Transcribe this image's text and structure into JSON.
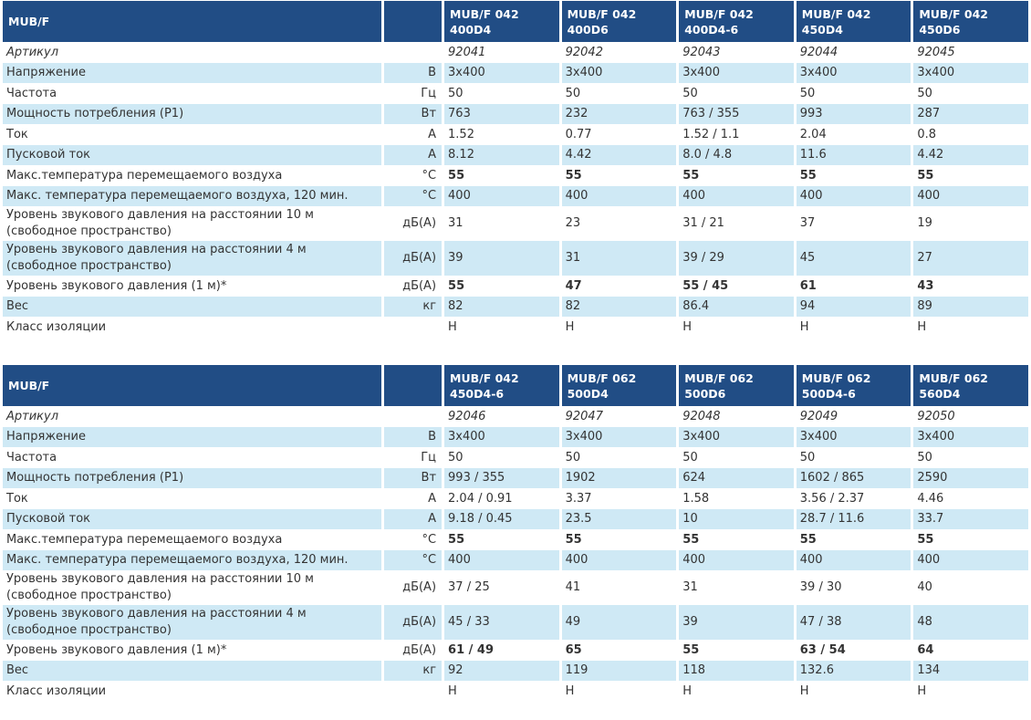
{
  "tables": [
    {
      "header": {
        "title": "MUB/F",
        "models": [
          "MUB/F 042 400D4",
          "MUB/F 042 400D6",
          "MUB/F 042 400D4-6",
          "MUB/F 042 450D4",
          "MUB/F 042 450D6"
        ]
      },
      "rows": [
        {
          "label": "Артикул",
          "unit": "",
          "values": [
            "92041",
            "92042",
            "92043",
            "92044",
            "92045"
          ]
        },
        {
          "label": "Напряжение",
          "unit": "В",
          "values": [
            "3x400",
            "3x400",
            "3x400",
            "3x400",
            "3x400"
          ]
        },
        {
          "label": "Частота",
          "unit": "Гц",
          "values": [
            "50",
            "50",
            "50",
            "50",
            "50"
          ]
        },
        {
          "label": "Мощность потребления (P1)",
          "unit": "Вт",
          "values": [
            "763",
            "232",
            "763 / 355",
            "993",
            "287"
          ]
        },
        {
          "label": "Ток",
          "unit": "A",
          "values": [
            "1.52",
            "0.77",
            "1.52 / 1.1",
            "2.04",
            "0.8"
          ]
        },
        {
          "label": "Пусковой ток",
          "unit": "A",
          "values": [
            "8.12",
            "4.42",
            "8.0 / 4.8",
            "11.6",
            "4.42"
          ]
        },
        {
          "label": "Макс.температура перемещаемого воздуха",
          "unit": "°C",
          "values": [
            "55",
            "55",
            "55",
            "55",
            "55"
          ]
        },
        {
          "label": "Макс. температура перемещаемого воздуха, 120 мин.",
          "unit": "°C",
          "values": [
            "400",
            "400",
            "400",
            "400",
            "400"
          ]
        },
        {
          "label": "Уровень звукового давления на расстоянии 10 м (свободное пространство)",
          "unit": "дБ(A)",
          "values": [
            "31",
            "23",
            "31 / 21",
            "37",
            "19"
          ]
        },
        {
          "label": "Уровень звукового давления на расстоянии 4 м (свободное пространство)",
          "unit": "дБ(A)",
          "values": [
            "39",
            "31",
            "39 / 29",
            "45",
            "27"
          ]
        },
        {
          "label": "Уровень звукового давления (1 м)*",
          "unit": "дБ(A)",
          "values": [
            "55",
            "47",
            "55 / 45",
            "61",
            "43"
          ]
        },
        {
          "label": "Вес",
          "unit": "кг",
          "values": [
            "82",
            "82",
            "86.4",
            "94",
            "89"
          ]
        },
        {
          "label": "Класс изоляции",
          "unit": "",
          "values": [
            "H",
            "H",
            "H",
            "H",
            "H"
          ]
        }
      ]
    },
    {
      "header": {
        "title": "MUB/F",
        "models": [
          "MUB/F 042 450D4-6",
          "MUB/F 062 500D4",
          "MUB/F 062 500D6",
          "MUB/F 062 500D4-6",
          "MUB/F 062 560D4"
        ]
      },
      "rows": [
        {
          "label": "Артикул",
          "unit": "",
          "values": [
            "92046",
            "92047",
            "92048",
            "92049",
            "92050"
          ]
        },
        {
          "label": "Напряжение",
          "unit": "В",
          "values": [
            "3x400",
            "3x400",
            "3x400",
            "3x400",
            "3x400"
          ]
        },
        {
          "label": "Частота",
          "unit": "Гц",
          "values": [
            "50",
            "50",
            "50",
            "50",
            "50"
          ]
        },
        {
          "label": "Мощность потребления (P1)",
          "unit": "Вт",
          "values": [
            "993 / 355",
            "1902",
            "624",
            "1602 / 865",
            "2590"
          ]
        },
        {
          "label": "Ток",
          "unit": "A",
          "values": [
            "2.04 / 0.91",
            "3.37",
            "1.58",
            "3.56 / 2.37",
            "4.46"
          ]
        },
        {
          "label": "Пусковой ток",
          "unit": "A",
          "values": [
            "9.18 / 0.45",
            "23.5",
            "10",
            "28.7 / 11.6",
            "33.7"
          ]
        },
        {
          "label": "Макс.температура перемещаемого воздуха",
          "unit": "°C",
          "values": [
            "55",
            "55",
            "55",
            "55",
            "55"
          ]
        },
        {
          "label": "Макс. температура перемещаемого воздуха, 120 мин.",
          "unit": "°C",
          "values": [
            "400",
            "400",
            "400",
            "400",
            "400"
          ]
        },
        {
          "label": "Уровень звукового давления на расстоянии 10 м (свободное пространство)",
          "unit": "дБ(A)",
          "values": [
            "37 / 25",
            "41",
            "31",
            "39 / 30",
            "40"
          ]
        },
        {
          "label": "Уровень звукового давления на расстоянии 4 м (свободное пространство)",
          "unit": "дБ(A)",
          "values": [
            "45 / 33",
            "49",
            "39",
            "47 / 38",
            "48"
          ]
        },
        {
          "label": "Уровень звукового давления (1 м)*",
          "unit": "дБ(A)",
          "values": [
            "61 / 49",
            "65",
            "55",
            "63 / 54",
            "64"
          ]
        },
        {
          "label": "Вес",
          "unit": "кг",
          "values": [
            "92",
            "119",
            "118",
            "132.6",
            "134"
          ]
        },
        {
          "label": "Класс изоляции",
          "unit": "",
          "values": [
            "H",
            "H",
            "H",
            "H",
            "H"
          ]
        }
      ]
    }
  ]
}
